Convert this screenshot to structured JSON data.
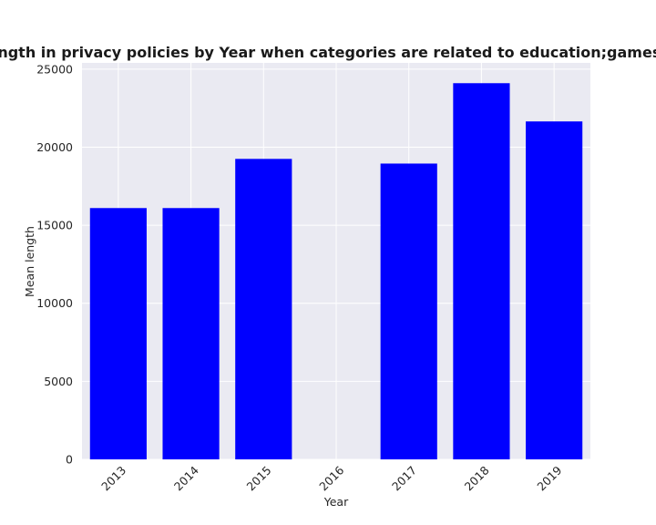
{
  "chart_data": {
    "type": "bar",
    "title": "Mean length in privacy policies by Year when categories are related to education;games;weapons",
    "xlabel": "Year",
    "ylabel": "Mean length",
    "categories": [
      "2013",
      "2014",
      "2015",
      "2016",
      "2017",
      "2018",
      "2019"
    ],
    "values": [
      16100,
      16100,
      19250,
      0,
      18950,
      24100,
      21650
    ],
    "ylim": [
      0,
      25400
    ],
    "yticks": [
      0,
      5000,
      10000,
      15000,
      20000,
      25000
    ],
    "bar_color": "#0000ff",
    "grid": true,
    "legend": "none"
  }
}
